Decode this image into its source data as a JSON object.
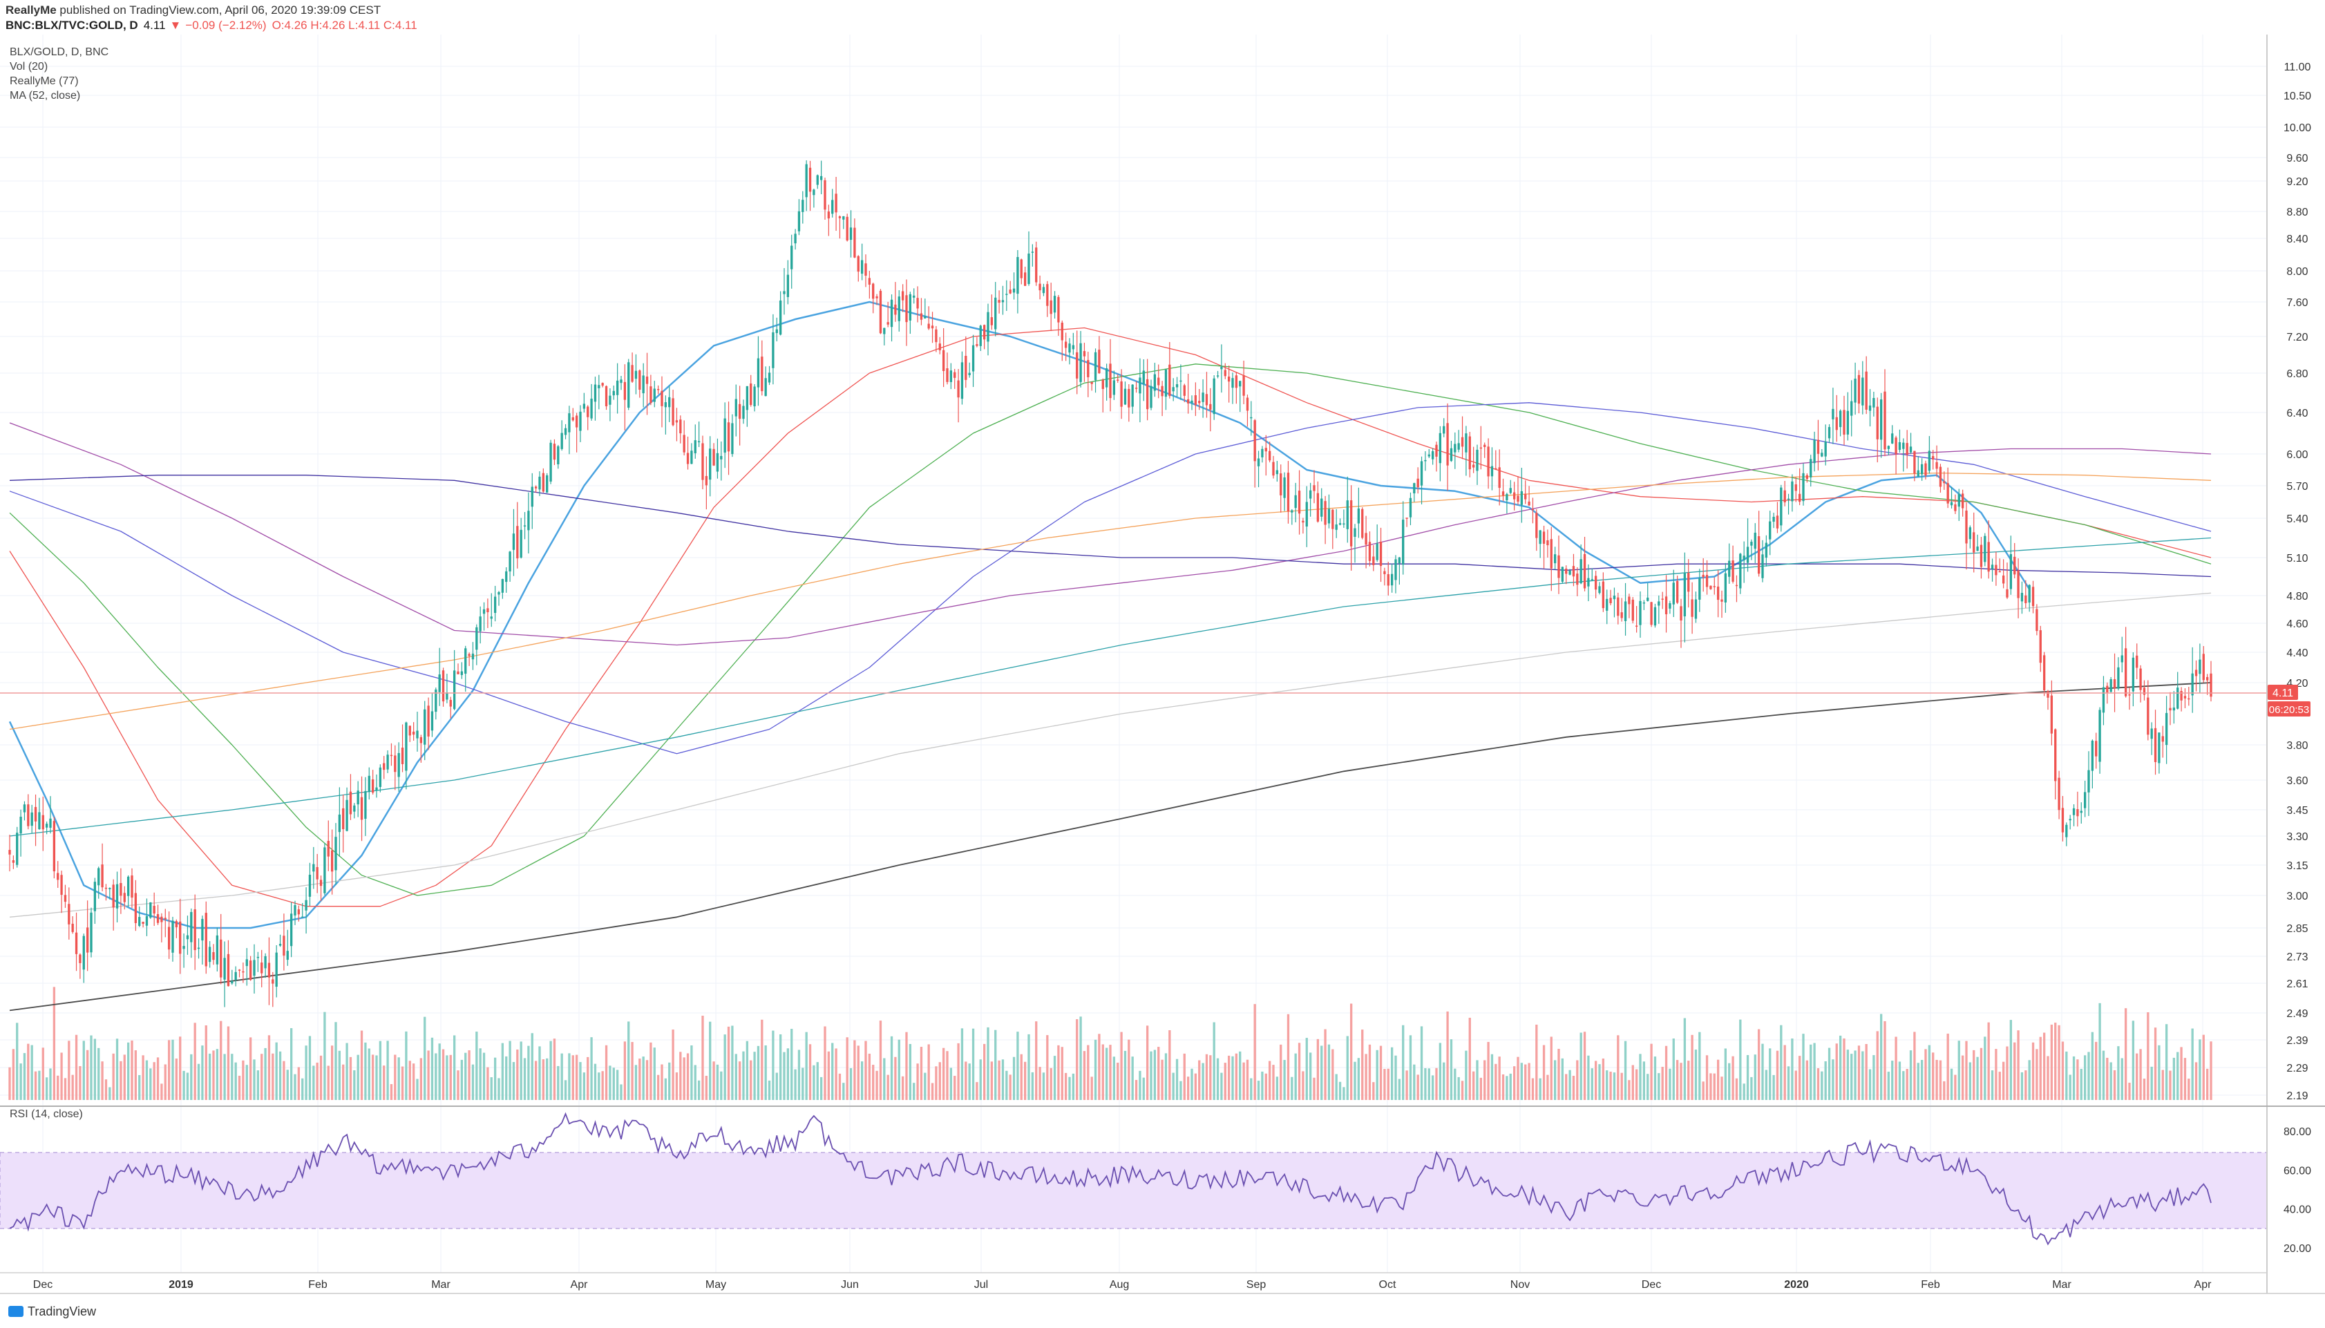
{
  "header": {
    "line1_author": "ReallyMe",
    "line1_rest": " published on TradingView.com, April 06, 2020 19:39:09 CEST",
    "symbol": "BNC:BLX/TVC:GOLD, D",
    "open_label": "4.11",
    "change": "−0.09 (−2.12%)",
    "ohlc": "O:4.26 H:4.26 L:4.11 C:4.11"
  },
  "legend": [
    "BLX/GOLD, D, BNC",
    "Vol (20)",
    "ReallyMe (77)",
    "MA (52, close)"
  ],
  "rsi_label": "RSI (14, close)",
  "price_tag": "4.11",
  "countdown": "06:20:53",
  "footer_brand": "TradingView",
  "colors": {
    "up": "#26a69a",
    "down": "#ef5350",
    "vol_up": "#8fd1c8",
    "vol_down": "#f5a1a0",
    "ma52": "#4aa3e0",
    "rsi": "#6a4fb0",
    "rsi_band": "#ede0fb"
  },
  "chart_data": {
    "type": "candlestick",
    "title": "BLX/GOLD, D, BNC",
    "price_axis_ticks": [
      "11.00",
      "10.50",
      "10.00",
      "9.60",
      "9.20",
      "8.80",
      "8.40",
      "8.00",
      "7.60",
      "7.20",
      "6.80",
      "6.40",
      "6.00",
      "5.70",
      "5.40",
      "5.10",
      "4.80",
      "4.60",
      "4.40",
      "4.20",
      "3.80",
      "3.60",
      "3.45",
      "3.30",
      "3.15",
      "3.00",
      "2.85",
      "2.73",
      "2.61",
      "2.49",
      "2.39",
      "2.29",
      "2.19"
    ],
    "time_axis_ticks": [
      "Dec",
      "2019",
      "Feb",
      "Mar",
      "Apr",
      "May",
      "Jun",
      "Jul",
      "Aug",
      "Sep",
      "Oct",
      "Nov",
      "Dec",
      "2020",
      "Feb",
      "Mar",
      "Apr"
    ],
    "rsi_axis_ticks": [
      "80.00",
      "60.00",
      "40.00",
      "20.00"
    ],
    "rsi_band": [
      30,
      70
    ],
    "last_price": 4.11,
    "close_path": [
      [
        0,
        3.2
      ],
      [
        8,
        3.5
      ],
      [
        18,
        2.7
      ],
      [
        25,
        3.1
      ],
      [
        40,
        2.9
      ],
      [
        52,
        2.8
      ],
      [
        62,
        2.62
      ],
      [
        72,
        2.7
      ],
      [
        80,
        3.0
      ],
      [
        92,
        3.45
      ],
      [
        105,
        3.75
      ],
      [
        120,
        4.2
      ],
      [
        135,
        5.0
      ],
      [
        150,
        6.3
      ],
      [
        170,
        6.8
      ],
      [
        188,
        5.9
      ],
      [
        205,
        6.9
      ],
      [
        215,
        9.4
      ],
      [
        225,
        8.5
      ],
      [
        235,
        7.4
      ],
      [
        245,
        7.6
      ],
      [
        255,
        6.6
      ],
      [
        265,
        7.5
      ],
      [
        275,
        8.2
      ],
      [
        285,
        7.1
      ],
      [
        300,
        6.6
      ],
      [
        315,
        6.7
      ],
      [
        330,
        6.6
      ],
      [
        345,
        5.6
      ],
      [
        360,
        5.4
      ],
      [
        372,
        4.95
      ],
      [
        385,
        6.2
      ],
      [
        400,
        5.9
      ],
      [
        412,
        5.3
      ],
      [
        425,
        4.9
      ],
      [
        437,
        4.7
      ],
      [
        450,
        4.8
      ],
      [
        462,
        4.9
      ],
      [
        475,
        5.3
      ],
      [
        487,
        6.0
      ],
      [
        500,
        6.6
      ],
      [
        510,
        6.15
      ],
      [
        520,
        5.8
      ],
      [
        532,
        5.1
      ],
      [
        546,
        4.8
      ],
      [
        554,
        3.3
      ],
      [
        560,
        3.5
      ],
      [
        566,
        4.2
      ],
      [
        574,
        4.25
      ],
      [
        579,
        3.75
      ],
      [
        586,
        4.2
      ],
      [
        590,
        4.21
      ],
      [
        594,
        4.11
      ]
    ],
    "ma_lines": [
      {
        "name": "MA (52, close)",
        "color": "#4aa3e0",
        "width": 2.5,
        "points": [
          [
            0,
            3.95
          ],
          [
            10,
            3.5
          ],
          [
            20,
            3.05
          ],
          [
            35,
            2.92
          ],
          [
            50,
            2.85
          ],
          [
            65,
            2.85
          ],
          [
            80,
            2.9
          ],
          [
            95,
            3.2
          ],
          [
            110,
            3.7
          ],
          [
            125,
            4.15
          ],
          [
            140,
            4.9
          ],
          [
            155,
            5.7
          ],
          [
            170,
            6.4
          ],
          [
            190,
            7.1
          ],
          [
            212,
            7.4
          ],
          [
            232,
            7.6
          ],
          [
            250,
            7.4
          ],
          [
            270,
            7.2
          ],
          [
            292,
            6.9
          ],
          [
            312,
            6.6
          ],
          [
            332,
            6.3
          ],
          [
            350,
            5.85
          ],
          [
            370,
            5.7
          ],
          [
            390,
            5.65
          ],
          [
            410,
            5.5
          ],
          [
            425,
            5.15
          ],
          [
            440,
            4.9
          ],
          [
            460,
            4.95
          ],
          [
            475,
            5.2
          ],
          [
            490,
            5.55
          ],
          [
            505,
            5.75
          ],
          [
            520,
            5.8
          ],
          [
            532,
            5.45
          ],
          [
            545,
            4.85
          ]
        ]
      },
      {
        "name": "SMA 100",
        "color": "#ef5350",
        "width": 1.3,
        "points": [
          [
            0,
            5.15
          ],
          [
            20,
            4.3
          ],
          [
            40,
            3.5
          ],
          [
            60,
            3.05
          ],
          [
            80,
            2.95
          ],
          [
            100,
            2.95
          ],
          [
            115,
            3.05
          ],
          [
            130,
            3.25
          ],
          [
            150,
            3.9
          ],
          [
            170,
            4.6
          ],
          [
            190,
            5.5
          ],
          [
            210,
            6.2
          ],
          [
            232,
            6.8
          ],
          [
            260,
            7.2
          ],
          [
            290,
            7.3
          ],
          [
            320,
            7.0
          ],
          [
            350,
            6.5
          ],
          [
            380,
            6.1
          ],
          [
            410,
            5.75
          ],
          [
            440,
            5.6
          ],
          [
            470,
            5.55
          ],
          [
            500,
            5.6
          ],
          [
            530,
            5.55
          ],
          [
            560,
            5.35
          ],
          [
            594,
            5.1
          ]
        ]
      },
      {
        "name": "SMA 150",
        "color": "#4caf50",
        "width": 1.3,
        "points": [
          [
            0,
            5.45
          ],
          [
            20,
            4.9
          ],
          [
            40,
            4.3
          ],
          [
            60,
            3.8
          ],
          [
            80,
            3.35
          ],
          [
            95,
            3.1
          ],
          [
            110,
            3.0
          ],
          [
            130,
            3.05
          ],
          [
            155,
            3.3
          ],
          [
            180,
            3.9
          ],
          [
            205,
            4.6
          ],
          [
            232,
            5.5
          ],
          [
            260,
            6.2
          ],
          [
            290,
            6.7
          ],
          [
            320,
            6.9
          ],
          [
            350,
            6.8
          ],
          [
            380,
            6.6
          ],
          [
            410,
            6.4
          ],
          [
            440,
            6.1
          ],
          [
            470,
            5.85
          ],
          [
            500,
            5.65
          ],
          [
            530,
            5.55
          ],
          [
            560,
            5.35
          ],
          [
            594,
            5.05
          ]
        ]
      },
      {
        "name": "SMA 200",
        "color": "#5b5bd6",
        "width": 1.3,
        "points": [
          [
            0,
            5.65
          ],
          [
            30,
            5.3
          ],
          [
            60,
            4.8
          ],
          [
            90,
            4.4
          ],
          [
            120,
            4.2
          ],
          [
            150,
            3.95
          ],
          [
            180,
            3.75
          ],
          [
            205,
            3.9
          ],
          [
            232,
            4.3
          ],
          [
            260,
            4.95
          ],
          [
            290,
            5.55
          ],
          [
            320,
            6.0
          ],
          [
            350,
            6.25
          ],
          [
            380,
            6.45
          ],
          [
            410,
            6.5
          ],
          [
            440,
            6.4
          ],
          [
            470,
            6.25
          ],
          [
            500,
            6.05
          ],
          [
            530,
            5.9
          ],
          [
            560,
            5.6
          ],
          [
            594,
            5.3
          ]
        ]
      },
      {
        "name": "SMA 250",
        "color": "#a04ba7",
        "width": 1.3,
        "points": [
          [
            0,
            6.3
          ],
          [
            30,
            5.9
          ],
          [
            60,
            5.4
          ],
          [
            90,
            4.95
          ],
          [
            120,
            4.55
          ],
          [
            150,
            4.5
          ],
          [
            180,
            4.45
          ],
          [
            210,
            4.5
          ],
          [
            240,
            4.65
          ],
          [
            270,
            4.8
          ],
          [
            300,
            4.9
          ],
          [
            330,
            5.0
          ],
          [
            360,
            5.15
          ],
          [
            390,
            5.35
          ],
          [
            420,
            5.55
          ],
          [
            450,
            5.75
          ],
          [
            480,
            5.9
          ],
          [
            510,
            6.0
          ],
          [
            540,
            6.05
          ],
          [
            570,
            6.05
          ],
          [
            594,
            6.0
          ]
        ]
      },
      {
        "name": "SMA 300",
        "color": "#3d2fa0",
        "width": 1.3,
        "points": [
          [
            0,
            5.75
          ],
          [
            40,
            5.8
          ],
          [
            80,
            5.8
          ],
          [
            120,
            5.75
          ],
          [
            150,
            5.6
          ],
          [
            180,
            5.45
          ],
          [
            210,
            5.3
          ],
          [
            240,
            5.2
          ],
          [
            270,
            5.15
          ],
          [
            300,
            5.1
          ],
          [
            330,
            5.1
          ],
          [
            360,
            5.05
          ],
          [
            390,
            5.05
          ],
          [
            420,
            5.0
          ],
          [
            450,
            5.05
          ],
          [
            480,
            5.05
          ],
          [
            510,
            5.05
          ],
          [
            540,
            5.0
          ],
          [
            570,
            4.98
          ],
          [
            594,
            4.95
          ]
        ]
      },
      {
        "name": "EMA 200",
        "color": "#f4a158",
        "width": 1.3,
        "points": [
          [
            0,
            3.9
          ],
          [
            40,
            4.05
          ],
          [
            80,
            4.2
          ],
          [
            120,
            4.35
          ],
          [
            160,
            4.55
          ],
          [
            200,
            4.8
          ],
          [
            240,
            5.05
          ],
          [
            280,
            5.25
          ],
          [
            320,
            5.4
          ],
          [
            360,
            5.5
          ],
          [
            400,
            5.6
          ],
          [
            440,
            5.7
          ],
          [
            480,
            5.78
          ],
          [
            520,
            5.82
          ],
          [
            560,
            5.8
          ],
          [
            594,
            5.75
          ]
        ]
      },
      {
        "name": "SMA 350",
        "color": "#2aa0a8",
        "width": 1.3,
        "points": [
          [
            0,
            3.3
          ],
          [
            60,
            3.45
          ],
          [
            120,
            3.6
          ],
          [
            180,
            3.85
          ],
          [
            240,
            4.15
          ],
          [
            300,
            4.45
          ],
          [
            360,
            4.72
          ],
          [
            420,
            4.9
          ],
          [
            480,
            5.05
          ],
          [
            540,
            5.15
          ],
          [
            594,
            5.25
          ]
        ]
      },
      {
        "name": "SMA 400",
        "color": "#c8c8c8",
        "width": 1.3,
        "points": [
          [
            0,
            2.9
          ],
          [
            60,
            3.0
          ],
          [
            120,
            3.15
          ],
          [
            180,
            3.45
          ],
          [
            240,
            3.75
          ],
          [
            300,
            4.0
          ],
          [
            360,
            4.2
          ],
          [
            420,
            4.4
          ],
          [
            480,
            4.55
          ],
          [
            540,
            4.7
          ],
          [
            594,
            4.82
          ]
        ]
      },
      {
        "name": "SMA 500",
        "color": "#4a4a4a",
        "width": 1.8,
        "points": [
          [
            0,
            2.5
          ],
          [
            60,
            2.62
          ],
          [
            120,
            2.75
          ],
          [
            180,
            2.9
          ],
          [
            240,
            3.15
          ],
          [
            300,
            3.4
          ],
          [
            360,
            3.65
          ],
          [
            420,
            3.85
          ],
          [
            480,
            4.0
          ],
          [
            540,
            4.13
          ],
          [
            594,
            4.2
          ]
        ]
      }
    ],
    "rsi_path": [
      [
        0,
        30
      ],
      [
        10,
        38
      ],
      [
        20,
        34
      ],
      [
        30,
        60
      ],
      [
        45,
        58
      ],
      [
        60,
        50
      ],
      [
        72,
        46
      ],
      [
        80,
        62
      ],
      [
        90,
        75
      ],
      [
        100,
        60
      ],
      [
        110,
        64
      ],
      [
        120,
        58
      ],
      [
        130,
        65
      ],
      [
        140,
        70
      ],
      [
        150,
        88
      ],
      [
        160,
        78
      ],
      [
        170,
        82
      ],
      [
        180,
        65
      ],
      [
        190,
        80
      ],
      [
        200,
        70
      ],
      [
        212,
        75
      ],
      [
        216,
        88
      ],
      [
        225,
        65
      ],
      [
        240,
        55
      ],
      [
        255,
        64
      ],
      [
        270,
        58
      ],
      [
        285,
        55
      ],
      [
        300,
        57
      ],
      [
        320,
        55
      ],
      [
        340,
        57
      ],
      [
        355,
        48
      ],
      [
        365,
        45
      ],
      [
        375,
        40
      ],
      [
        385,
        65
      ],
      [
        400,
        50
      ],
      [
        415,
        45
      ],
      [
        420,
        35
      ],
      [
        430,
        50
      ],
      [
        440,
        45
      ],
      [
        460,
        50
      ],
      [
        470,
        55
      ],
      [
        480,
        60
      ],
      [
        490,
        65
      ],
      [
        500,
        70
      ],
      [
        510,
        68
      ],
      [
        520,
        65
      ],
      [
        530,
        62
      ],
      [
        540,
        42
      ],
      [
        550,
        22
      ],
      [
        556,
        30
      ],
      [
        565,
        40
      ],
      [
        575,
        45
      ],
      [
        580,
        42
      ],
      [
        590,
        50
      ],
      [
        594,
        48
      ]
    ]
  }
}
